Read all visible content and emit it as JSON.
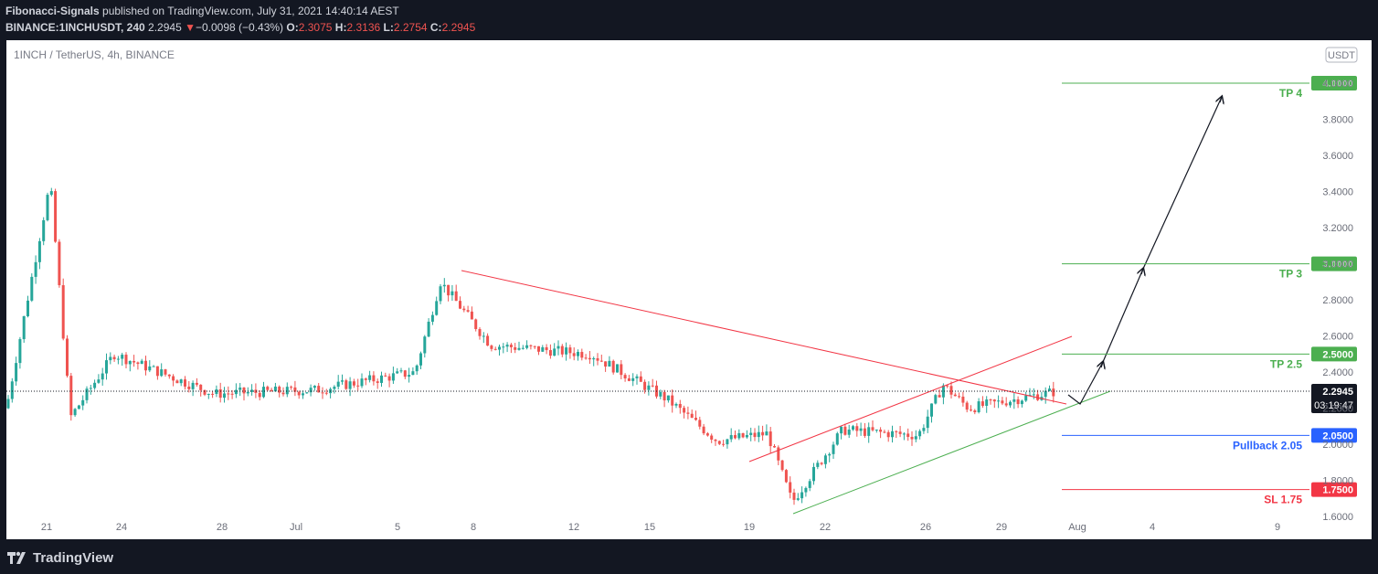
{
  "header": {
    "author": "Fibonacci-Signals",
    "published_text": "published on TradingView.com, July 31, 2021 14:40:14 AEST",
    "symbol": "BINANCE:1INCHUSDT, 240",
    "last": "2.2945",
    "change_arrow": "▼",
    "change": "−0.0098 (−0.43%)",
    "open_label": "O:",
    "open": "2.3075",
    "high_label": "H:",
    "high": "2.3136",
    "low_label": "L:",
    "low": "2.2754",
    "close_label": "C:",
    "close": "2.2945"
  },
  "footer": {
    "brand": "TradingView"
  },
  "chart_data": {
    "type": "candlestick",
    "title": "1INCH / TetherUS, 4h, BINANCE",
    "currency_badge": "USDT",
    "x_ticks": [
      "21",
      "24",
      "28",
      "Jul",
      "5",
      "8",
      "12",
      "15",
      "19",
      "22",
      "26",
      "29",
      "Aug",
      "4",
      "9"
    ],
    "y_ticks": [
      "4.0000",
      "3.8000",
      "3.6000",
      "3.4000",
      "3.2000",
      "3.0000",
      "2.8000",
      "2.6000",
      "2.4000",
      "2.2000",
      "2.0000",
      "1.8000",
      "1.6000"
    ],
    "ylim": [
      1.5,
      4.2
    ],
    "last_price": {
      "price": 2.2945,
      "label": "2.2945",
      "countdown": "03:19:47"
    },
    "levels": [
      {
        "name": "TP 4",
        "price": 4.0,
        "label": "4.0000",
        "color": "#4caf50"
      },
      {
        "name": "TP 3",
        "price": 3.0,
        "label": "3.0000",
        "color": "#4caf50"
      },
      {
        "name": "TP 2.5",
        "price": 2.5,
        "label": "2.5000",
        "color": "#4caf50"
      },
      {
        "name": "Pullback 2.05",
        "price": 2.05,
        "label": "2.0500",
        "color": "#2962ff"
      },
      {
        "name": "SL 1.75",
        "price": 1.75,
        "label": "1.7500",
        "color": "#f23645"
      }
    ],
    "colors": {
      "up": "#26a69a",
      "down": "#ef5350",
      "price_dot": "#131722"
    },
    "price_path_approx": [
      {
        "date": "Jun 19",
        "price": 2.2
      },
      {
        "date": "Jun 22",
        "price": 3.45
      },
      {
        "date": "Jun 23",
        "price": 2.15
      },
      {
        "date": "Jun 24",
        "price": 2.5
      },
      {
        "date": "Jun 28",
        "price": 2.28
      },
      {
        "date": "Jul 2",
        "price": 2.3
      },
      {
        "date": "Jul 6",
        "price": 2.4
      },
      {
        "date": "Jul 7",
        "price": 2.9
      },
      {
        "date": "Jul 9",
        "price": 2.55
      },
      {
        "date": "Jul 13",
        "price": 2.5
      },
      {
        "date": "Jul 16",
        "price": 2.25
      },
      {
        "date": "Jul 18",
        "price": 2.02
      },
      {
        "date": "Jul 20",
        "price": 2.06
      },
      {
        "date": "Jul 21",
        "price": 1.68
      },
      {
        "date": "Jul 23",
        "price": 2.08
      },
      {
        "date": "Jul 26",
        "price": 2.05
      },
      {
        "date": "Jul 27",
        "price": 2.33
      },
      {
        "date": "Jul 28",
        "price": 2.2
      },
      {
        "date": "Jul 31",
        "price": 2.2945
      }
    ]
  }
}
